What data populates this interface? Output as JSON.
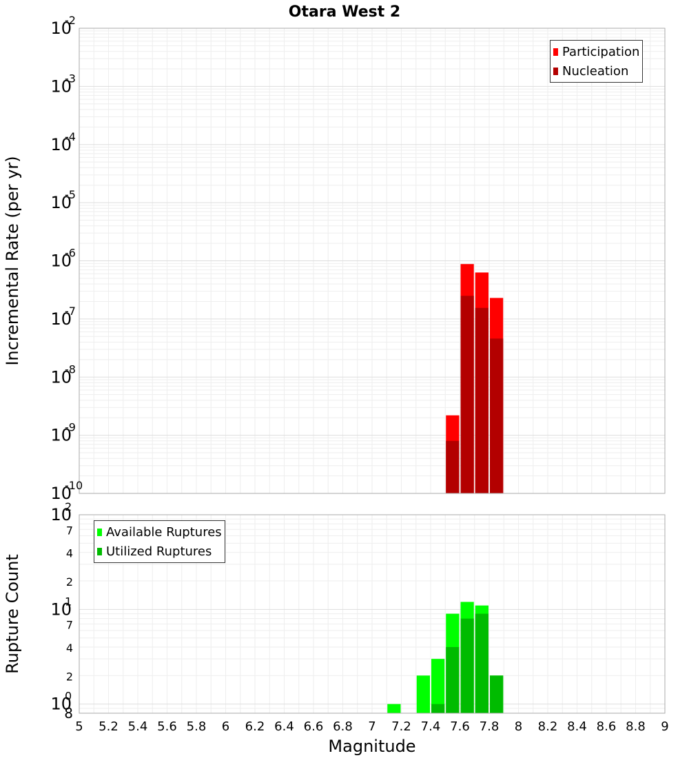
{
  "chart_data": [
    {
      "type": "bar",
      "title": "Otara West 2",
      "xlabel": "",
      "ylabel": "Incremental Rate (per yr)",
      "yscale": "log",
      "xlim": [
        5,
        9
      ],
      "ylim": [
        1e-10,
        0.01
      ],
      "bar_width": 0.1,
      "legend_position": "top-right",
      "y_major_ticks": [
        {
          "base": "10",
          "exp": "-10",
          "value": 1e-10
        },
        {
          "base": "10",
          "exp": "-9",
          "value": 1e-09
        },
        {
          "base": "10",
          "exp": "-8",
          "value": 1e-08
        },
        {
          "base": "10",
          "exp": "-7",
          "value": 1e-07
        },
        {
          "base": "10",
          "exp": "-6",
          "value": 1e-06
        },
        {
          "base": "10",
          "exp": "-5",
          "value": 1e-05
        },
        {
          "base": "10",
          "exp": "-4",
          "value": 0.0001
        },
        {
          "base": "10",
          "exp": "-3",
          "value": 0.001
        },
        {
          "base": "10",
          "exp": "-2",
          "value": 0.01
        }
      ],
      "series": [
        {
          "name": "Participation",
          "color": "#ff0000",
          "x": [
            7.55,
            7.65,
            7.75,
            7.85
          ],
          "values": [
            2.2e-09,
            8.8e-07,
            6.3e-07,
            2.3e-07
          ]
        },
        {
          "name": "Nucleation",
          "color": "#b30000",
          "x": [
            7.55,
            7.65,
            7.75,
            7.85
          ],
          "values": [
            8e-10,
            2.5e-07,
            1.55e-07,
            4.6e-08
          ]
        }
      ]
    },
    {
      "type": "bar",
      "title": "",
      "xlabel": "Magnitude",
      "ylabel": "Rupture Count",
      "yscale": "log",
      "xlim": [
        5,
        9
      ],
      "ylim": [
        0.8,
        100
      ],
      "bar_width": 0.1,
      "legend_position": "top-left",
      "x_ticks": [
        "5",
        "5.2",
        "5.4",
        "5.6",
        "5.8",
        "6",
        "6.2",
        "6.4",
        "6.6",
        "6.8",
        "7",
        "7.2",
        "7.4",
        "7.6",
        "7.8",
        "8",
        "8.2",
        "8.4",
        "8.6",
        "8.8",
        "9"
      ],
      "y_major_ticks": [
        {
          "base": "10",
          "exp": "0",
          "value": 1
        },
        {
          "base": "10",
          "exp": "1",
          "value": 10
        },
        {
          "base": "10",
          "exp": "2",
          "value": 100
        }
      ],
      "y_minor_labels": [
        {
          "label": "8",
          "value": 0.8
        },
        {
          "label": "2",
          "value": 2
        },
        {
          "label": "4",
          "value": 4
        },
        {
          "label": "7",
          "value": 7
        },
        {
          "label": "2",
          "value": 20
        },
        {
          "label": "4",
          "value": 40
        },
        {
          "label": "7",
          "value": 70
        }
      ],
      "series": [
        {
          "name": "Available Ruptures",
          "color": "#00ff00",
          "x": [
            7.15,
            7.35,
            7.45,
            7.55,
            7.65,
            7.75,
            7.85
          ],
          "values": [
            1,
            2,
            3,
            9,
            12,
            11,
            2
          ]
        },
        {
          "name": "Utilized Ruptures",
          "color": "#00bb00",
          "x": [
            7.45,
            7.55,
            7.65,
            7.75,
            7.85
          ],
          "values": [
            1,
            4,
            8,
            9,
            2
          ]
        }
      ]
    }
  ]
}
